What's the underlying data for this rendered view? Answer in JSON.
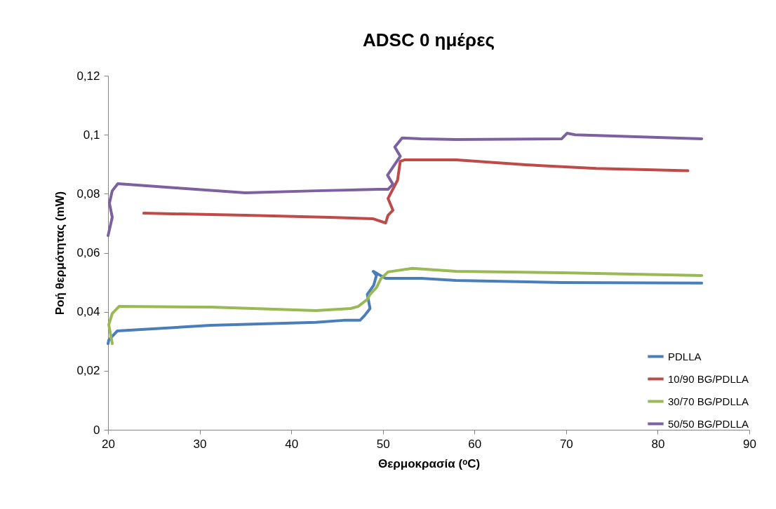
{
  "chart_data": {
    "type": "line",
    "title": "ADSC 0 ημέρες",
    "xlabel": "Θερμοκρασία (ᵒC)",
    "ylabel": "Ροή  θερμότητας (mW)",
    "xlim": [
      20,
      90
    ],
    "xticks": [
      20,
      30,
      40,
      50,
      60,
      70,
      80,
      90
    ],
    "ylim": [
      0,
      0.12
    ],
    "yticks": [
      0,
      {
        "value": 0.02,
        "label": "0,02"
      },
      {
        "value": 0.04,
        "label": "0,04"
      },
      {
        "value": 0.06,
        "label": "0,06"
      },
      {
        "value": 0.08,
        "label": "0,08"
      },
      {
        "value": 0.1,
        "label": "0,1"
      },
      {
        "value": 0.12,
        "label": "0,12"
      }
    ],
    "grid": false,
    "legend": "bottom right",
    "line_style": "solid",
    "marker": "none",
    "series": [
      {
        "name": "PDLLA",
        "color": "#4a7ebb",
        "x": [
          20,
          20.08,
          21,
          31.2,
          42.7,
          45.7,
          47.5,
          48,
          48.6,
          48.3,
          49,
          49.3,
          48.95,
          50.3,
          54.2,
          58,
          69.5,
          84.8
        ],
        "values": [
          0.0292,
          0.0304,
          0.0335,
          0.0354,
          0.0364,
          0.0371,
          0.0371,
          0.0387,
          0.0411,
          0.0459,
          0.049,
          0.0523,
          0.0537,
          0.0513,
          0.0513,
          0.0506,
          0.0499,
          0.0497
        ]
      },
      {
        "name": "10/90 BG/PDLLA",
        "color": "#be4b48",
        "x": [
          23.9,
          35,
          44.2,
          48.95,
          50.3,
          50.56,
          51.1,
          50.56,
          51.6,
          51.9,
          52.4,
          58,
          65.6,
          73.3,
          83.3
        ],
        "values": [
          0.0734,
          0.0727,
          0.072,
          0.0715,
          0.0701,
          0.0727,
          0.0744,
          0.0784,
          0.0846,
          0.091,
          0.0915,
          0.0915,
          0.0898,
          0.0886,
          0.0878
        ]
      },
      {
        "name": "30/70 BG/PDLLA",
        "color": "#98b954",
        "x": [
          20.46,
          20.08,
          20.46,
          21.2,
          31.2,
          42.7,
          46.5,
          47.3,
          48.3,
          48.6,
          49.3,
          49.8,
          50.56,
          53.2,
          58,
          69.5,
          84.8
        ],
        "values": [
          0.0292,
          0.0356,
          0.0394,
          0.0418,
          0.0416,
          0.0404,
          0.0411,
          0.0418,
          0.0442,
          0.0459,
          0.0482,
          0.0513,
          0.0535,
          0.0547,
          0.0537,
          0.0532,
          0.0523
        ]
      },
      {
        "name": "50/50 BG/PDLLA",
        "color": "#7d60a0",
        "x": [
          20,
          20.46,
          20.15,
          20.46,
          21.07,
          27.4,
          35,
          42.7,
          49.6,
          50.56,
          51.1,
          50.5,
          51.9,
          51.3,
          52.1,
          54.2,
          58,
          69.5,
          70.1,
          71,
          84.8
        ],
        "values": [
          0.0658,
          0.072,
          0.0768,
          0.081,
          0.0834,
          0.082,
          0.0803,
          0.081,
          0.0815,
          0.0815,
          0.0832,
          0.0863,
          0.0927,
          0.0958,
          0.0989,
          0.0986,
          0.0984,
          0.0986,
          0.1005,
          0.1,
          0.0986
        ]
      }
    ]
  }
}
